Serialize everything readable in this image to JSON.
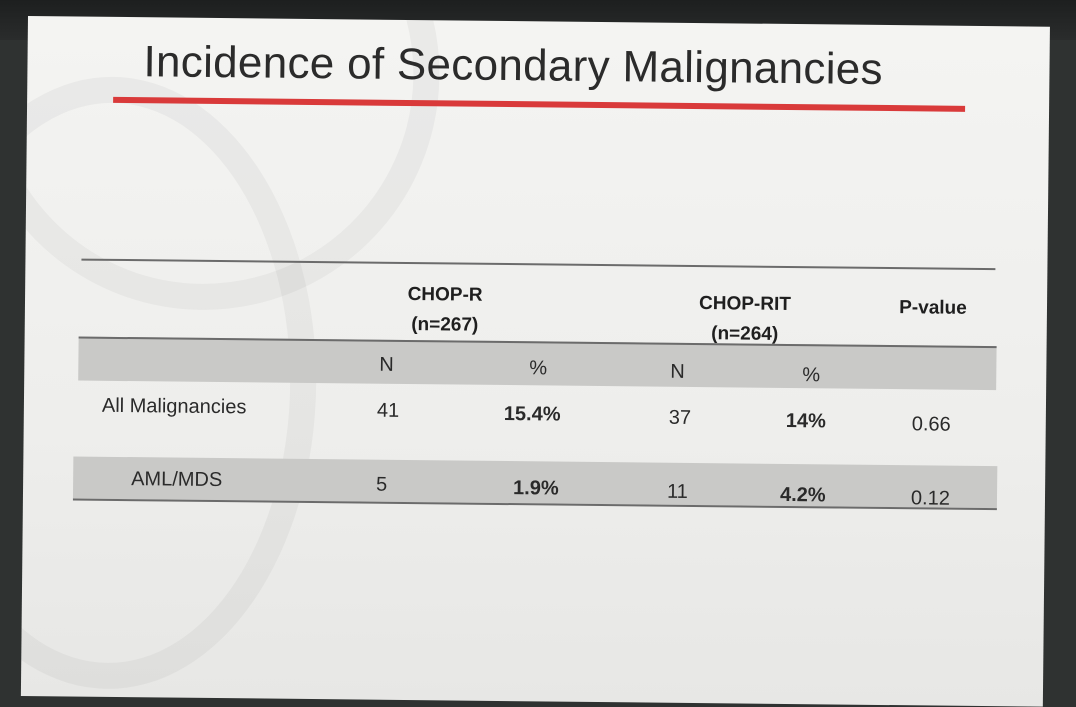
{
  "slide": {
    "title": "Incidence of Secondary Malignancies"
  },
  "table": {
    "groups": [
      {
        "name": "CHOP-R",
        "n": "(n=267)"
      },
      {
        "name": "CHOP-RIT",
        "n": "(n=264)"
      }
    ],
    "pvalue_header": "P-value",
    "subheaders": [
      "N",
      "%",
      "N",
      "%"
    ],
    "rows": [
      {
        "label": "All Malignancies",
        "chopr_n": "41",
        "chopr_pct": "15.4%",
        "choprit_n": "37",
        "choprit_pct": "14%",
        "p": "0.66"
      },
      {
        "label": "AML/MDS",
        "chopr_n": "5",
        "chopr_pct": "1.9%",
        "choprit_n": "11",
        "choprit_pct": "4.2%",
        "p": "0.12"
      }
    ]
  },
  "colors": {
    "accent_rule": "#d93a3a",
    "band": "#c9c9c7",
    "background": "#f4f4f2"
  }
}
